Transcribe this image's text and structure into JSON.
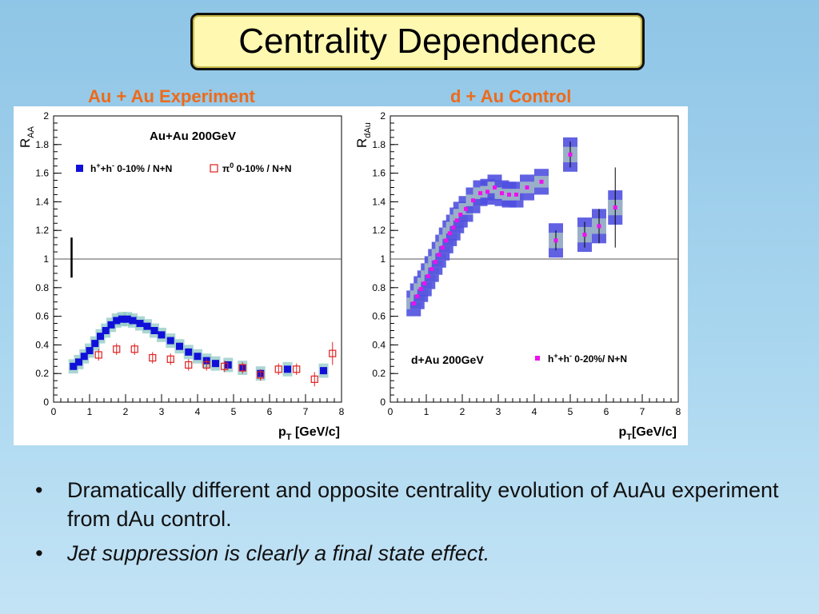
{
  "slide": {
    "title": "Centrality Dependence",
    "left_heading": "Au + Au Experiment",
    "right_heading": "d + Au Control",
    "bullet_symbol": "•",
    "bullets": [
      "Dramatically different and opposite centrality evolution of AuAu experiment from dAu control.",
      "Jet suppression is clearly a final state effect."
    ]
  },
  "chart_data": [
    {
      "type": "scatter",
      "title": "Au+Au 200GeV",
      "xlabel": "p_T [GeV/c]",
      "ylabel": "R_AA",
      "xlim": [
        0,
        8
      ],
      "ylim": [
        0,
        2
      ],
      "xticks": [
        "0",
        "1",
        "2",
        "3",
        "4",
        "5",
        "6",
        "7",
        "8"
      ],
      "yticks": [
        "0",
        "0.2",
        "0.4",
        "0.6",
        "0.8",
        "1",
        "1.2",
        "1.4",
        "1.6",
        "1.8",
        "2"
      ],
      "reference_line": 1,
      "legend_position": "top",
      "normalization_error_bar": {
        "x": 0.5,
        "y_low": 0.87,
        "y_high": 1.15
      },
      "series": [
        {
          "name": "h⁺+h⁻ 0-10% / N+N",
          "legend_label": {
            "main": "h",
            "sup1": "+",
            "mid": "+h",
            "sup2": "-",
            "rest": " 0-10% / N+N"
          },
          "marker": "filled-square",
          "color": "#1010d8",
          "band_color": "#8fc8c4",
          "points": [
            {
              "x": 0.55,
              "y": 0.25
            },
            {
              "x": 0.7,
              "y": 0.28
            },
            {
              "x": 0.85,
              "y": 0.32
            },
            {
              "x": 1.0,
              "y": 0.36
            },
            {
              "x": 1.15,
              "y": 0.41
            },
            {
              "x": 1.3,
              "y": 0.46
            },
            {
              "x": 1.45,
              "y": 0.5
            },
            {
              "x": 1.6,
              "y": 0.54
            },
            {
              "x": 1.75,
              "y": 0.57
            },
            {
              "x": 1.9,
              "y": 0.58
            },
            {
              "x": 2.05,
              "y": 0.58
            },
            {
              "x": 2.2,
              "y": 0.57
            },
            {
              "x": 2.4,
              "y": 0.55
            },
            {
              "x": 2.6,
              "y": 0.53
            },
            {
              "x": 2.8,
              "y": 0.5
            },
            {
              "x": 3.0,
              "y": 0.47
            },
            {
              "x": 3.25,
              "y": 0.43
            },
            {
              "x": 3.5,
              "y": 0.39
            },
            {
              "x": 3.75,
              "y": 0.35
            },
            {
              "x": 4.0,
              "y": 0.32
            },
            {
              "x": 4.25,
              "y": 0.29
            },
            {
              "x": 4.5,
              "y": 0.27
            },
            {
              "x": 4.85,
              "y": 0.26
            },
            {
              "x": 5.25,
              "y": 0.24
            },
            {
              "x": 5.75,
              "y": 0.2
            },
            {
              "x": 6.5,
              "y": 0.23
            },
            {
              "x": 7.5,
              "y": 0.22
            }
          ]
        },
        {
          "name": "π⁰ 0-10% / N+N",
          "legend_label": {
            "main": "π",
            "sup1": "0",
            "rest": " 0-10% / N+N"
          },
          "marker": "open-square",
          "color": "#e02020",
          "points": [
            {
              "x": 1.25,
              "y": 0.33,
              "err": 0.04
            },
            {
              "x": 1.75,
              "y": 0.37,
              "err": 0.04
            },
            {
              "x": 2.25,
              "y": 0.37,
              "err": 0.04
            },
            {
              "x": 2.75,
              "y": 0.31,
              "err": 0.04
            },
            {
              "x": 3.25,
              "y": 0.3,
              "err": 0.04
            },
            {
              "x": 3.75,
              "y": 0.26,
              "err": 0.04
            },
            {
              "x": 4.25,
              "y": 0.26,
              "err": 0.04
            },
            {
              "x": 4.75,
              "y": 0.25,
              "err": 0.04
            },
            {
              "x": 5.25,
              "y": 0.24,
              "err": 0.04
            },
            {
              "x": 5.75,
              "y": 0.19,
              "err": 0.04
            },
            {
              "x": 6.25,
              "y": 0.23,
              "err": 0.04
            },
            {
              "x": 6.75,
              "y": 0.23,
              "err": 0.04
            },
            {
              "x": 7.25,
              "y": 0.16,
              "err": 0.05
            },
            {
              "x": 7.75,
              "y": 0.34,
              "err": 0.08
            }
          ]
        }
      ]
    },
    {
      "type": "scatter",
      "title": "d+Au 200GeV",
      "xlabel": "p_T[GeV/c]",
      "ylabel": "R_dAu",
      "xlim": [
        0,
        8
      ],
      "ylim": [
        0,
        2
      ],
      "xticks": [
        "0",
        "1",
        "2",
        "3",
        "4",
        "5",
        "6",
        "7",
        "8"
      ],
      "yticks": [
        "0",
        "0.2",
        "0.4",
        "0.6",
        "0.8",
        "1",
        "1.2",
        "1.4",
        "1.6",
        "1.8",
        "2"
      ],
      "reference_line": 1,
      "legend_position": "bottom-right",
      "series": [
        {
          "name": "h⁺+h⁻ 0-20%/ N+N",
          "legend_label": {
            "main": "h",
            "sup1": "+",
            "mid": "+h",
            "sup2": "-",
            "rest": " 0-20%/ N+N"
          },
          "marker": "filled-square",
          "color": "#ee10ee",
          "band_color": "#5050e0",
          "band_inner_color": "#9ab0c8",
          "points": [
            {
              "x": 0.65,
              "y": 0.69
            },
            {
              "x": 0.75,
              "y": 0.74
            },
            {
              "x": 0.85,
              "y": 0.79
            },
            {
              "x": 0.95,
              "y": 0.83
            },
            {
              "x": 1.05,
              "y": 0.88
            },
            {
              "x": 1.15,
              "y": 0.93
            },
            {
              "x": 1.25,
              "y": 0.98
            },
            {
              "x": 1.35,
              "y": 1.03
            },
            {
              "x": 1.45,
              "y": 1.08
            },
            {
              "x": 1.55,
              "y": 1.13
            },
            {
              "x": 1.65,
              "y": 1.18
            },
            {
              "x": 1.75,
              "y": 1.22
            },
            {
              "x": 1.85,
              "y": 1.27
            },
            {
              "x": 1.95,
              "y": 1.31
            },
            {
              "x": 2.1,
              "y": 1.35
            },
            {
              "x": 2.3,
              "y": 1.41
            },
            {
              "x": 2.5,
              "y": 1.46
            },
            {
              "x": 2.7,
              "y": 1.47
            },
            {
              "x": 2.9,
              "y": 1.5
            },
            {
              "x": 3.1,
              "y": 1.46
            },
            {
              "x": 3.3,
              "y": 1.45
            },
            {
              "x": 3.5,
              "y": 1.45
            },
            {
              "x": 3.8,
              "y": 1.5
            },
            {
              "x": 4.2,
              "y": 1.54
            },
            {
              "x": 4.6,
              "y": 1.13,
              "err": 0.07
            },
            {
              "x": 5.0,
              "y": 1.73,
              "err": 0.09
            },
            {
              "x": 5.4,
              "y": 1.17,
              "err": 0.09
            },
            {
              "x": 5.8,
              "y": 1.23,
              "err": 0.12
            },
            {
              "x": 6.25,
              "y": 1.36,
              "err": 0.28
            }
          ]
        }
      ]
    }
  ]
}
